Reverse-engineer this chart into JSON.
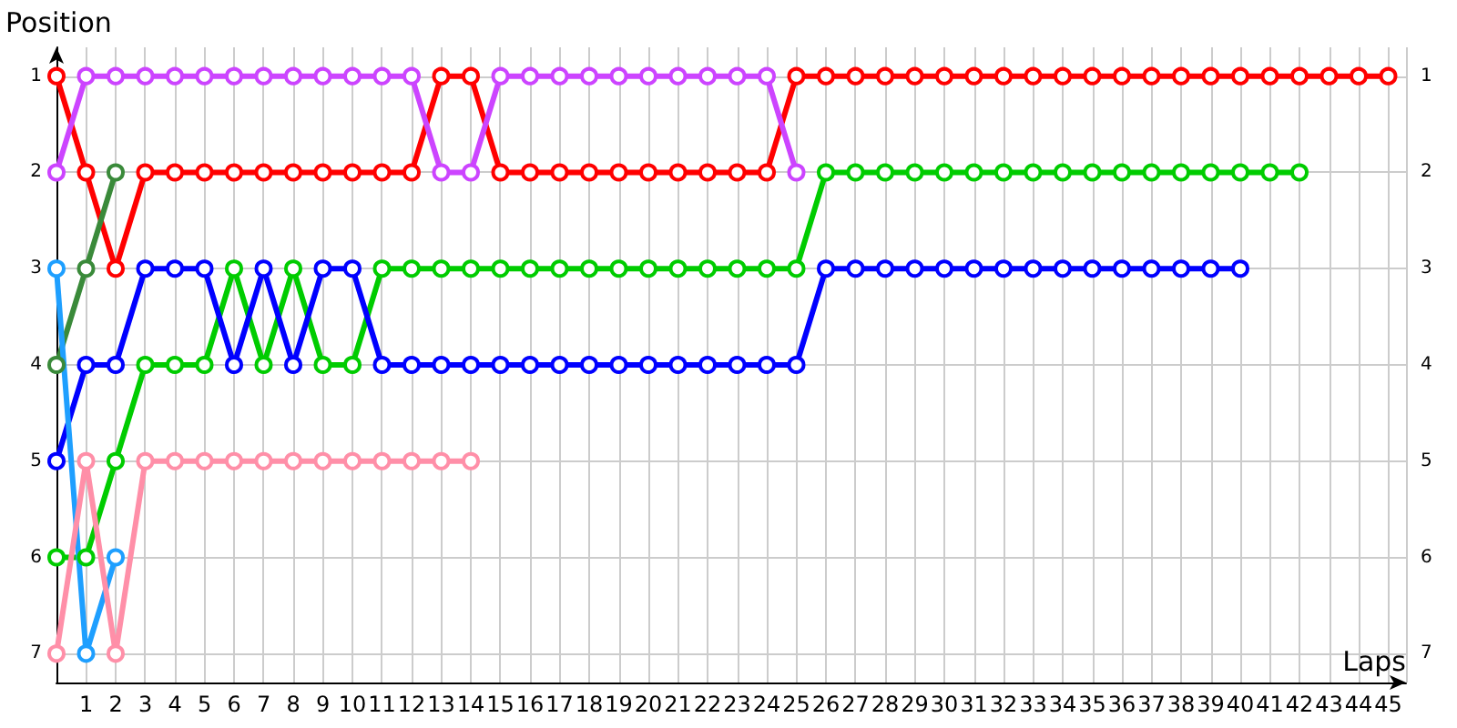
{
  "chart_data": {
    "type": "line",
    "xlabel": "Laps",
    "ylabel": "Position",
    "x": [
      0,
      1,
      2,
      3,
      4,
      5,
      6,
      7,
      8,
      9,
      10,
      11,
      12,
      13,
      14,
      15,
      16,
      17,
      18,
      19,
      20,
      21,
      22,
      23,
      24,
      25,
      26,
      27,
      28,
      29,
      30,
      31,
      32,
      33,
      34,
      35,
      36,
      37,
      38,
      39,
      40,
      41,
      42,
      43,
      44,
      45
    ],
    "series": [
      {
        "color": "#ff0000",
        "values": [
          1,
          2,
          3,
          2,
          2,
          2,
          2,
          2,
          2,
          2,
          2,
          2,
          2,
          1,
          1,
          2,
          2,
          2,
          2,
          2,
          2,
          2,
          2,
          2,
          2,
          1,
          1,
          1,
          1,
          1,
          1,
          1,
          1,
          1,
          1,
          1,
          1,
          1,
          1,
          1,
          1,
          1,
          1,
          1,
          1,
          1
        ]
      },
      {
        "color": "#cc44ff",
        "x": [
          0,
          1,
          2,
          3,
          4,
          5,
          6,
          7,
          8,
          9,
          10,
          11,
          12,
          13,
          14,
          15,
          16,
          17,
          18,
          19,
          20,
          21,
          22,
          23,
          24,
          25
        ],
        "values": [
          2,
          1,
          1,
          1,
          1,
          1,
          1,
          1,
          1,
          1,
          1,
          1,
          1,
          2,
          2,
          1,
          1,
          1,
          1,
          1,
          1,
          1,
          1,
          1,
          1,
          2
        ]
      },
      {
        "color": "#3a8a3a",
        "x": [
          0,
          1,
          2
        ],
        "values": [
          4,
          3,
          2
        ]
      },
      {
        "color": "#00cc00",
        "x": [
          0,
          1,
          2,
          3,
          4,
          5,
          6,
          7,
          8,
          9,
          10,
          11,
          12,
          13,
          14,
          15,
          16,
          17,
          18,
          19,
          20,
          21,
          22,
          23,
          24,
          25,
          26,
          27,
          28,
          29,
          30,
          31,
          32,
          33,
          34,
          35,
          36,
          37,
          38,
          39,
          40,
          41,
          42
        ],
        "values": [
          6,
          6,
          5,
          4,
          4,
          4,
          3,
          4,
          3,
          4,
          4,
          3,
          3,
          3,
          3,
          3,
          3,
          3,
          3,
          3,
          3,
          3,
          3,
          3,
          3,
          3,
          2,
          2,
          2,
          2,
          2,
          2,
          2,
          2,
          2,
          2,
          2,
          2,
          2,
          2,
          2,
          2,
          2
        ]
      },
      {
        "color": "#0000ff",
        "x": [
          0,
          1,
          2,
          3,
          4,
          5,
          6,
          7,
          8,
          9,
          10,
          11,
          12,
          13,
          14,
          15,
          16,
          17,
          18,
          19,
          20,
          21,
          22,
          23,
          24,
          25,
          26,
          27,
          28,
          29,
          30,
          31,
          32,
          33,
          34,
          35,
          36,
          37,
          38,
          39,
          40
        ],
        "values": [
          5,
          4,
          4,
          3,
          3,
          3,
          4,
          3,
          4,
          3,
          3,
          4,
          4,
          4,
          4,
          4,
          4,
          4,
          4,
          4,
          4,
          4,
          4,
          4,
          4,
          4,
          3,
          3,
          3,
          3,
          3,
          3,
          3,
          3,
          3,
          3,
          3,
          3,
          3,
          3,
          3
        ]
      },
      {
        "color": "#1e9fff",
        "x": [
          0,
          1,
          2
        ],
        "values": [
          3,
          7,
          6
        ]
      },
      {
        "color": "#ff8fa8",
        "x": [
          0,
          1,
          2,
          3,
          4,
          5,
          6,
          7,
          8,
          9,
          10,
          11,
          12,
          13,
          14
        ],
        "values": [
          7,
          5,
          7,
          5,
          5,
          5,
          5,
          5,
          5,
          5,
          5,
          5,
          5,
          5,
          5
        ]
      }
    ],
    "xlim": [
      0,
      45.6
    ],
    "xticks": [
      1,
      2,
      3,
      4,
      5,
      6,
      7,
      8,
      9,
      10,
      11,
      12,
      13,
      14,
      15,
      16,
      17,
      18,
      19,
      20,
      21,
      22,
      23,
      24,
      25,
      26,
      27,
      28,
      29,
      30,
      31,
      32,
      33,
      34,
      35,
      36,
      37,
      38,
      39,
      40,
      41,
      42,
      43,
      44,
      45
    ],
    "ylim": [
      7.3,
      0.7
    ],
    "yticks": [
      1,
      2,
      3,
      4,
      5,
      6,
      7
    ],
    "y2lim": [
      7.3,
      0.7
    ],
    "y2ticks": [
      1,
      2,
      3,
      4,
      5,
      6,
      7
    ],
    "grid": true,
    "marker": "circle",
    "line_style": "solid"
  }
}
